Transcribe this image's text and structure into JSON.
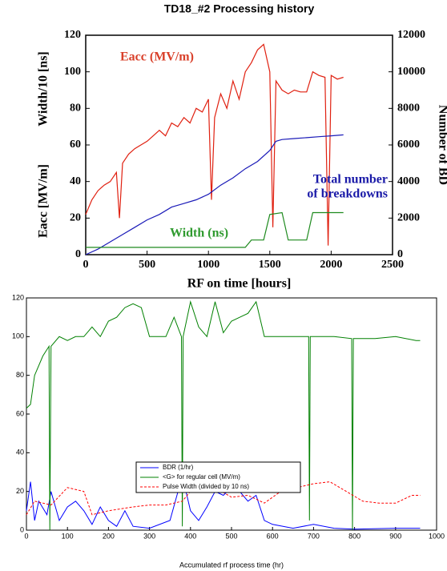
{
  "chart_data": [
    {
      "type": "line",
      "title": "TD18_#2 Processing history",
      "xlabel": "RF on time [hours]",
      "ylabels": [
        "Eacc [MV/m]",
        "Width/10 [ns]"
      ],
      "y2label": "Number of BD",
      "xlim": [
        0,
        2500
      ],
      "xticks": [
        0,
        500,
        1000,
        1500,
        2000,
        2500
      ],
      "ylim": [
        0,
        120
      ],
      "yticks": [
        0,
        20,
        40,
        60,
        80,
        100,
        120
      ],
      "y2lim": [
        0,
        12000
      ],
      "y2ticks": [
        0,
        2000,
        4000,
        6000,
        8000,
        10000,
        12000
      ],
      "legend": false,
      "annotations": [
        {
          "text": "Eacc (MV/m)",
          "color": "#d9402a"
        },
        {
          "text": "Total number",
          "color": "#1a1aa8"
        },
        {
          "text": "of breakdowns",
          "color": "#1a1aa8"
        },
        {
          "text": "Width (ns)",
          "color": "#2e9a2e"
        }
      ],
      "series": [
        {
          "name": "Eacc (MV/m)",
          "color": "#e02010",
          "style": "solid",
          "x": [
            0,
            50,
            100,
            150,
            200,
            250,
            275,
            300,
            350,
            400,
            450,
            500,
            550,
            600,
            650,
            700,
            750,
            800,
            850,
            900,
            950,
            1000,
            1025,
            1050,
            1100,
            1150,
            1200,
            1250,
            1300,
            1350,
            1400,
            1450,
            1500,
            1525,
            1550,
            1600,
            1650,
            1700,
            1750,
            1800,
            1850,
            1900,
            1950,
            1975,
            2000,
            2050,
            2100
          ],
          "values": [
            22,
            30,
            35,
            38,
            40,
            45,
            20,
            50,
            55,
            58,
            60,
            62,
            65,
            68,
            65,
            72,
            70,
            75,
            72,
            80,
            78,
            85,
            30,
            75,
            88,
            80,
            95,
            85,
            100,
            105,
            112,
            115,
            100,
            15,
            95,
            90,
            88,
            90,
            89,
            89,
            100,
            98,
            97,
            5,
            98,
            96,
            97
          ]
        },
        {
          "name": "Total number of breakdowns",
          "color": "#1a1ab8",
          "style": "solid",
          "axis": "y2",
          "x": [
            0,
            100,
            200,
            300,
            400,
            500,
            600,
            700,
            800,
            900,
            1000,
            1100,
            1200,
            1300,
            1400,
            1500,
            1550,
            1600,
            1700,
            1800,
            1900,
            2000,
            2100
          ],
          "values": [
            0,
            300,
            700,
            1100,
            1500,
            1900,
            2200,
            2600,
            2800,
            3000,
            3300,
            3800,
            4200,
            4700,
            5100,
            5700,
            6200,
            6300,
            6350,
            6400,
            6450,
            6500,
            6550
          ]
        },
        {
          "name": "Width (ns)",
          "color": "#1e8a1e",
          "style": "solid",
          "x": [
            0,
            300,
            600,
            900,
            1300,
            1350,
            1450,
            1500,
            1600,
            1650,
            1700,
            1800,
            1850,
            2100
          ],
          "values": [
            4,
            4,
            4,
            4,
            4,
            8,
            8,
            22,
            23,
            8,
            8,
            8,
            23,
            23
          ]
        }
      ]
    },
    {
      "type": "line",
      "xlabel": "Accumulated rf process time (hr)",
      "xlim": [
        0,
        1000
      ],
      "xticks": [
        0,
        100,
        200,
        300,
        400,
        500,
        600,
        700,
        800,
        900,
        1000
      ],
      "ylim": [
        0,
        120
      ],
      "yticks": [
        0,
        20,
        40,
        60,
        80,
        100,
        120
      ],
      "legend": true,
      "series": [
        {
          "name": "BDR (1/hr)",
          "color": "#0000ff",
          "style": "solid",
          "x": [
            0,
            10,
            20,
            30,
            50,
            60,
            80,
            100,
            120,
            140,
            160,
            180,
            200,
            220,
            240,
            260,
            300,
            350,
            380,
            400,
            420,
            440,
            460,
            480,
            500,
            520,
            540,
            560,
            580,
            600,
            650,
            700,
            750,
            800,
            900,
            960
          ],
          "values": [
            10,
            25,
            5,
            15,
            8,
            20,
            5,
            12,
            15,
            10,
            3,
            12,
            5,
            2,
            10,
            2,
            1,
            5,
            28,
            10,
            5,
            12,
            20,
            18,
            22,
            20,
            15,
            18,
            5,
            3,
            1,
            3,
            1,
            0.5,
            1,
            1
          ]
        },
        {
          "name": "<G> for regular cell (MV/m)",
          "color": "#008000",
          "style": "solid",
          "x": [
            0,
            10,
            20,
            40,
            55,
            57,
            60,
            80,
            100,
            120,
            140,
            160,
            180,
            200,
            220,
            240,
            260,
            280,
            300,
            320,
            340,
            360,
            378,
            380,
            382,
            400,
            420,
            440,
            460,
            480,
            500,
            520,
            540,
            560,
            580,
            600,
            688,
            690,
            692,
            750,
            793,
            795,
            797,
            850,
            900,
            950,
            960
          ],
          "values": [
            63,
            65,
            80,
            90,
            95,
            0,
            95,
            100,
            98,
            100,
            100,
            105,
            100,
            108,
            110,
            115,
            117,
            115,
            100,
            100,
            100,
            110,
            100,
            2,
            100,
            118,
            105,
            100,
            118,
            102,
            108,
            110,
            112,
            118,
            100,
            100,
            100,
            5,
            100,
            100,
            99,
            0,
            99,
            99,
            100,
            98,
            98
          ]
        },
        {
          "name": "Pulse Width (divided by 10 ns)",
          "color": "#ff0000",
          "style": "dashed",
          "x": [
            0,
            20,
            60,
            100,
            140,
            160,
            200,
            260,
            300,
            340,
            380,
            400,
            420,
            460,
            500,
            540,
            580,
            620,
            660,
            700,
            740,
            780,
            820,
            860,
            900,
            940,
            960
          ],
          "values": [
            8,
            15,
            13,
            22,
            20,
            8,
            10,
            12,
            13,
            13,
            15,
            20,
            20,
            22,
            17,
            18,
            14,
            20,
            22,
            24,
            25,
            20,
            15,
            14,
            14,
            18,
            18
          ]
        }
      ]
    }
  ]
}
